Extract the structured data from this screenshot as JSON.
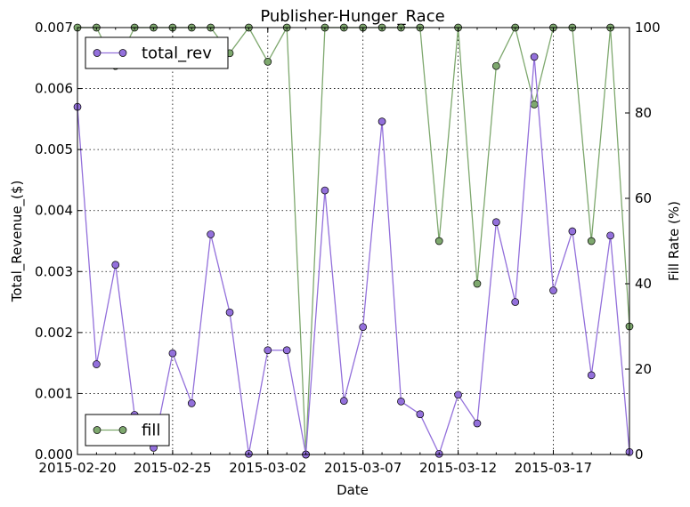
{
  "chart_data": {
    "type": "line",
    "title": "Publisher-Hunger_Race",
    "xlabel": "Date",
    "ylabel_left": "Total_Revenue_($)",
    "ylabel_right": "Fill Rate (%)",
    "grid": true,
    "x": [
      "2015-02-20",
      "2015-02-21",
      "2015-02-22",
      "2015-02-23",
      "2015-02-24",
      "2015-02-25",
      "2015-02-26",
      "2015-02-27",
      "2015-02-28",
      "2015-03-01",
      "2015-03-02",
      "2015-03-03",
      "2015-03-04",
      "2015-03-05",
      "2015-03-06",
      "2015-03-07",
      "2015-03-08",
      "2015-03-09",
      "2015-03-10",
      "2015-03-11",
      "2015-03-12",
      "2015-03-13",
      "2015-03-14",
      "2015-03-15",
      "2015-03-16",
      "2015-03-17",
      "2015-03-18",
      "2015-03-19",
      "2015-03-20",
      "2015-03-21"
    ],
    "x_ticks": [
      "2015-02-20",
      "2015-02-25",
      "2015-03-02",
      "2015-03-07",
      "2015-03-12",
      "2015-03-17"
    ],
    "y_left_lim": [
      0,
      0.007
    ],
    "y_left_ticks": [
      "0.000",
      "0.001",
      "0.002",
      "0.003",
      "0.004",
      "0.005",
      "0.006",
      "0.007"
    ],
    "y_right_lim": [
      0,
      100
    ],
    "y_right_ticks": [
      "0",
      "20",
      "40",
      "60",
      "80",
      "100"
    ],
    "series": [
      {
        "name": "total_rev",
        "axis": "left",
        "color": "#9370db",
        "values": [
          0.0057,
          0.00148,
          0.00311,
          0.00065,
          0.00011,
          0.00166,
          0.00084,
          0.00361,
          0.00233,
          1e-05,
          0.00171,
          0.00171,
          0.0,
          0.00433,
          0.00088,
          0.00209,
          0.00546,
          0.00087,
          0.00066,
          1e-05,
          0.00098,
          0.00051,
          0.00381,
          0.0025,
          0.00652,
          0.00269,
          0.00366,
          0.0013,
          0.00359,
          4e-05
        ]
      },
      {
        "name": "fill",
        "axis": "right",
        "color": "#7ea86e",
        "values": [
          100,
          100,
          91,
          100,
          100,
          100,
          100,
          100,
          94,
          100,
          92,
          100,
          0,
          100,
          100,
          100,
          100,
          100,
          100,
          50,
          100,
          40,
          91,
          100,
          82,
          100,
          100,
          50,
          100,
          30
        ]
      }
    ],
    "legend": [
      {
        "label": "total_rev",
        "position": "top-left"
      },
      {
        "label": "fill",
        "position": "bottom-left"
      }
    ]
  }
}
